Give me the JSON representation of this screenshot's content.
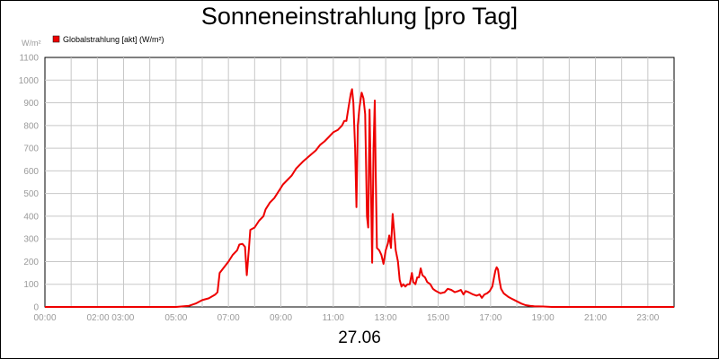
{
  "title": "Sonneneinstrahlung [pro Tag]",
  "date_label": "27.06",
  "chart_data": {
    "type": "line",
    "title": "Sonneneinstrahlung [pro Tag]",
    "xlabel": "27.06",
    "ylabel": "W/m²",
    "ylim": [
      0,
      1100
    ],
    "xlim": [
      0,
      1440
    ],
    "grid": true,
    "legend_position": "top-left",
    "y_ticks": [
      "0",
      "100",
      "200",
      "300",
      "400",
      "500",
      "600",
      "700",
      "800",
      "900",
      "1000",
      "1100"
    ],
    "x_tick_labels": [
      "00:00",
      "02:00 03:00",
      "05:00",
      "07:00",
      "09:00",
      "11:00",
      "13:00",
      "15:00",
      "17:00",
      "19:00",
      "21:00",
      "23:00"
    ],
    "x_tick_minutes": [
      0,
      150,
      300,
      420,
      540,
      660,
      780,
      900,
      1020,
      1140,
      1260,
      1380
    ],
    "series": [
      {
        "name": "Globalstrahlung [akt] (W/m²)",
        "color": "#ee0000",
        "points": [
          [
            0,
            0
          ],
          [
            300,
            0
          ],
          [
            330,
            5
          ],
          [
            345,
            15
          ],
          [
            360,
            30
          ],
          [
            375,
            38
          ],
          [
            390,
            55
          ],
          [
            395,
            65
          ],
          [
            400,
            150
          ],
          [
            420,
            200
          ],
          [
            430,
            230
          ],
          [
            440,
            250
          ],
          [
            445,
            275
          ],
          [
            452,
            278
          ],
          [
            458,
            265
          ],
          [
            462,
            140
          ],
          [
            467,
            260
          ],
          [
            470,
            340
          ],
          [
            480,
            350
          ],
          [
            490,
            380
          ],
          [
            500,
            400
          ],
          [
            505,
            430
          ],
          [
            515,
            460
          ],
          [
            525,
            480
          ],
          [
            535,
            510
          ],
          [
            545,
            540
          ],
          [
            555,
            560
          ],
          [
            565,
            580
          ],
          [
            575,
            610
          ],
          [
            590,
            640
          ],
          [
            605,
            665
          ],
          [
            620,
            690
          ],
          [
            630,
            715
          ],
          [
            640,
            730
          ],
          [
            650,
            750
          ],
          [
            660,
            770
          ],
          [
            670,
            780
          ],
          [
            680,
            800
          ],
          [
            685,
            820
          ],
          [
            690,
            820
          ],
          [
            695,
            880
          ],
          [
            700,
            940
          ],
          [
            703,
            960
          ],
          [
            706,
            900
          ],
          [
            710,
            700
          ],
          [
            713,
            440
          ],
          [
            716,
            800
          ],
          [
            720,
            880
          ],
          [
            725,
            945
          ],
          [
            729,
            920
          ],
          [
            733,
            850
          ],
          [
            737,
            400
          ],
          [
            740,
            350
          ],
          [
            743,
            870
          ],
          [
            746,
            560
          ],
          [
            749,
            195
          ],
          [
            752,
            700
          ],
          [
            755,
            910
          ],
          [
            757,
            600
          ],
          [
            760,
            260
          ],
          [
            765,
            250
          ],
          [
            770,
            230
          ],
          [
            775,
            190
          ],
          [
            780,
            250
          ],
          [
            785,
            280
          ],
          [
            788,
            315
          ],
          [
            792,
            260
          ],
          [
            796,
            410
          ],
          [
            799,
            340
          ],
          [
            803,
            250
          ],
          [
            808,
            200
          ],
          [
            812,
            120
          ],
          [
            816,
            90
          ],
          [
            820,
            100
          ],
          [
            825,
            90
          ],
          [
            830,
            100
          ],
          [
            835,
            100
          ],
          [
            840,
            150
          ],
          [
            843,
            110
          ],
          [
            848,
            100
          ],
          [
            852,
            130
          ],
          [
            856,
            130
          ],
          [
            860,
            170
          ],
          [
            864,
            140
          ],
          [
            870,
            130
          ],
          [
            875,
            110
          ],
          [
            882,
            100
          ],
          [
            888,
            80
          ],
          [
            895,
            70
          ],
          [
            905,
            60
          ],
          [
            915,
            65
          ],
          [
            922,
            80
          ],
          [
            930,
            75
          ],
          [
            938,
            65
          ],
          [
            946,
            70
          ],
          [
            952,
            75
          ],
          [
            958,
            55
          ],
          [
            963,
            70
          ],
          [
            970,
            65
          ],
          [
            980,
            55
          ],
          [
            988,
            50
          ],
          [
            995,
            55
          ],
          [
            1000,
            40
          ],
          [
            1006,
            55
          ],
          [
            1012,
            60
          ],
          [
            1018,
            70
          ],
          [
            1024,
            90
          ],
          [
            1028,
            130
          ],
          [
            1031,
            160
          ],
          [
            1034,
            175
          ],
          [
            1037,
            165
          ],
          [
            1040,
            120
          ],
          [
            1044,
            80
          ],
          [
            1050,
            60
          ],
          [
            1060,
            45
          ],
          [
            1070,
            35
          ],
          [
            1080,
            25
          ],
          [
            1090,
            15
          ],
          [
            1100,
            8
          ],
          [
            1110,
            5
          ],
          [
            1120,
            3
          ],
          [
            1140,
            2
          ],
          [
            1160,
            0
          ],
          [
            1440,
            0
          ]
        ]
      }
    ]
  }
}
